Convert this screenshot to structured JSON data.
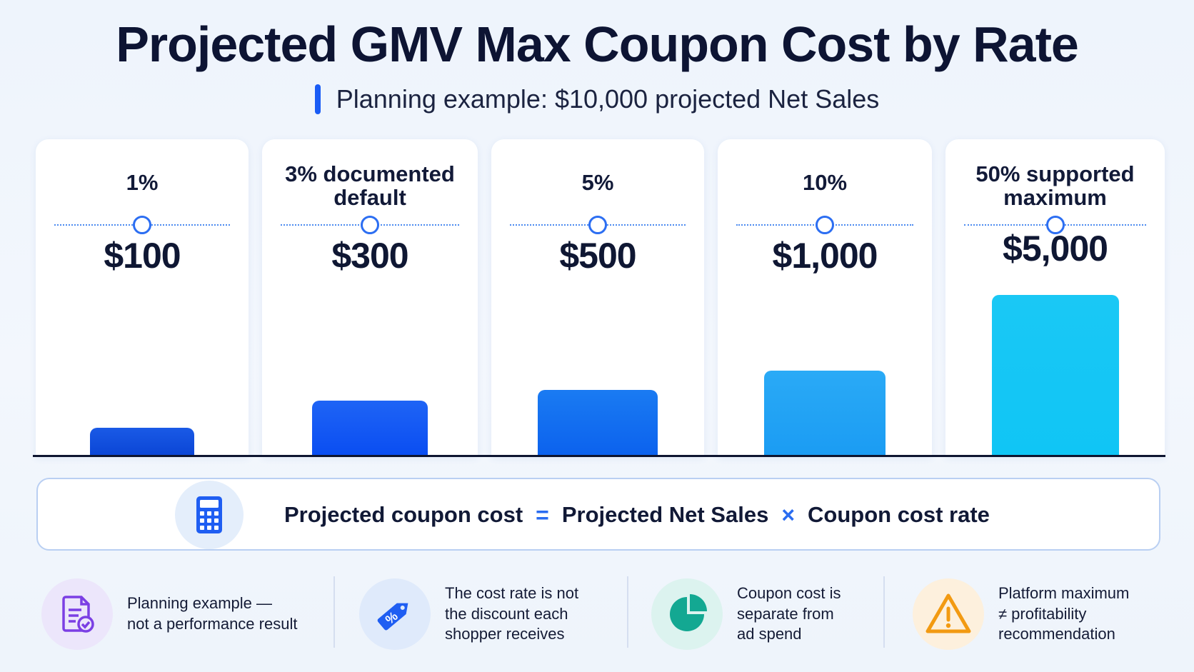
{
  "title": "Projected GMV Max Coupon Cost by Rate",
  "subtitle": "Planning example: $10,000 projected Net Sales",
  "chart_data": {
    "type": "bar",
    "title": "Projected GMV Max Coupon Cost by Rate",
    "subtitle": "Planning example: $10,000 projected Net Sales",
    "categories": [
      "1%",
      "3% documented default",
      "5%",
      "10%",
      "50% supported maximum"
    ],
    "values": [
      100,
      300,
      500,
      1000,
      5000
    ],
    "value_labels": [
      "$100",
      "$300",
      "$500",
      "$1,000",
      "$5,000"
    ],
    "xlabel": "",
    "ylabel": "",
    "grid": false,
    "legend": "none"
  },
  "cards": [
    {
      "label_lines": [
        "1%"
      ],
      "value": "$100",
      "color_top": "#1a5ae6",
      "color_bottom": "#0b46d6"
    },
    {
      "label_lines": [
        "3% documented",
        "default"
      ],
      "value": "$300",
      "color_top": "#1f64f5",
      "color_bottom": "#0a4ef2"
    },
    {
      "label_lines": [
        "5%"
      ],
      "value": "$500",
      "color_top": "#1a7bf2",
      "color_bottom": "#0c62ee"
    },
    {
      "label_lines": [
        "10%"
      ],
      "value": "$1,000",
      "color_top": "#2aaaf6",
      "color_bottom": "#1b9cf3"
    },
    {
      "label_lines": [
        "50% supported",
        "maximum"
      ],
      "value": "$5,000",
      "color_top": "#1ac8f5",
      "color_bottom": "#10c5f5"
    }
  ],
  "formula": {
    "left": "Projected coupon cost",
    "op_equals": "=",
    "middle": "Projected Net Sales",
    "op_times": "×",
    "right": "Coupon cost rate",
    "icon": "calculator-icon"
  },
  "notes": [
    {
      "text": "Planning example —\nnot a performance result",
      "icon": "document-check-icon",
      "bg": "#ece6fb"
    },
    {
      "text": "The cost rate is not\nthe discount each\nshopper receives",
      "icon": "percent-tag-icon",
      "bg": "#dfeafb"
    },
    {
      "text": "Coupon cost is\nseparate from\nad spend",
      "icon": "pie-chart-icon",
      "bg": "#dcf3ef"
    },
    {
      "text": "Platform maximum\n≠ profitability\nrecommendation",
      "icon": "warning-icon",
      "bg": "#fdf0dd"
    }
  ],
  "colors": {
    "accent": "#1a5cf5",
    "dotline": "#4c8bf0",
    "text_dark": "#0f1733"
  }
}
